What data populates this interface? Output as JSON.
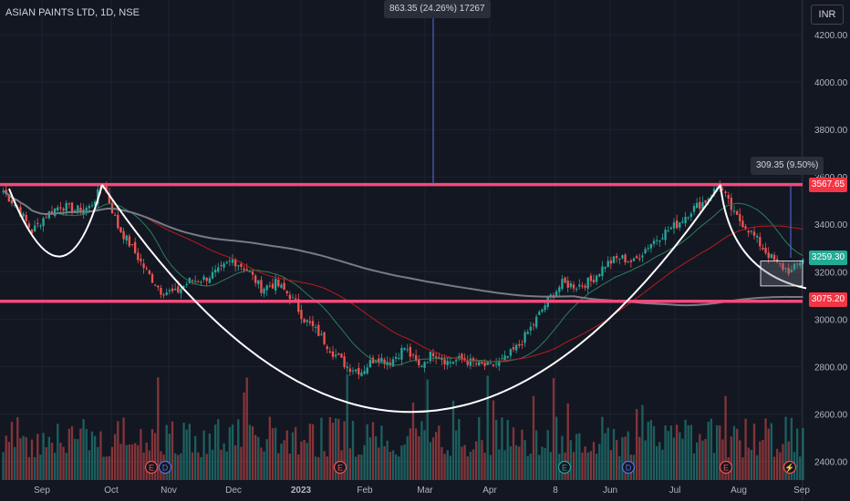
{
  "header": {
    "symbol": "ASIAN PAINTS LTD, 1D, NSE",
    "currency": "INR"
  },
  "measure_top": "863.35 (24.26%) 17267",
  "measure_right": "309.35 (9.50%)",
  "price_tags": [
    {
      "value": "3567.65",
      "color": "#f23645"
    },
    {
      "value": "3259.30",
      "color": "#22ab94"
    },
    {
      "value": "3075.20",
      "color": "#f23645"
    }
  ],
  "chart_data": {
    "type": "candlestick",
    "title": "ASIAN PAINTS LTD, 1D, NSE",
    "ylim": [
      2350,
      4300
    ],
    "y_ticks": [
      "4200.00",
      "4000.00",
      "3800.00",
      "3600.00",
      "3400.00",
      "3200.00",
      "3000.00",
      "2800.00",
      "2600.00",
      "2400.00"
    ],
    "x_ticks": [
      "Sep",
      "Oct",
      "Nov",
      "Dec",
      "2023",
      "Feb",
      "Mar",
      "Apr",
      "8",
      "Jun",
      "Jul",
      "Aug",
      "Sep"
    ],
    "horizontal_levels": [
      3567.65,
      3075.2
    ],
    "last_price": 3259.3,
    "close_anchors": [
      [
        0,
        3540
      ],
      [
        5,
        3470
      ],
      [
        10,
        3370
      ],
      [
        15,
        3440
      ],
      [
        20,
        3480
      ],
      [
        25,
        3460
      ],
      [
        30,
        3470
      ],
      [
        35,
        3567
      ],
      [
        40,
        3390
      ],
      [
        45,
        3300
      ],
      [
        50,
        3200
      ],
      [
        55,
        3120
      ],
      [
        60,
        3110
      ],
      [
        65,
        3160
      ],
      [
        70,
        3170
      ],
      [
        75,
        3200
      ],
      [
        80,
        3250
      ],
      [
        85,
        3210
      ],
      [
        90,
        3130
      ],
      [
        95,
        3150
      ],
      [
        100,
        3100
      ],
      [
        105,
        3000
      ],
      [
        110,
        2940
      ],
      [
        115,
        2860
      ],
      [
        120,
        2800
      ],
      [
        125,
        2780
      ],
      [
        130,
        2840
      ],
      [
        135,
        2820
      ],
      [
        140,
        2880
      ],
      [
        145,
        2800
      ],
      [
        150,
        2860
      ],
      [
        155,
        2820
      ],
      [
        160,
        2830
      ],
      [
        165,
        2810
      ],
      [
        170,
        2800
      ],
      [
        175,
        2830
      ],
      [
        180,
        2890
      ],
      [
        185,
        2980
      ],
      [
        190,
        3080
      ],
      [
        195,
        3150
      ],
      [
        200,
        3140
      ],
      [
        205,
        3160
      ],
      [
        210,
        3230
      ],
      [
        215,
        3260
      ],
      [
        220,
        3240
      ],
      [
        225,
        3310
      ],
      [
        230,
        3360
      ],
      [
        235,
        3400
      ],
      [
        240,
        3460
      ],
      [
        245,
        3500
      ],
      [
        250,
        3567
      ],
      [
        255,
        3440
      ],
      [
        260,
        3380
      ],
      [
        265,
        3300
      ],
      [
        270,
        3230
      ],
      [
        275,
        3200
      ],
      [
        279,
        3259
      ]
    ],
    "volume_days": 280
  }
}
